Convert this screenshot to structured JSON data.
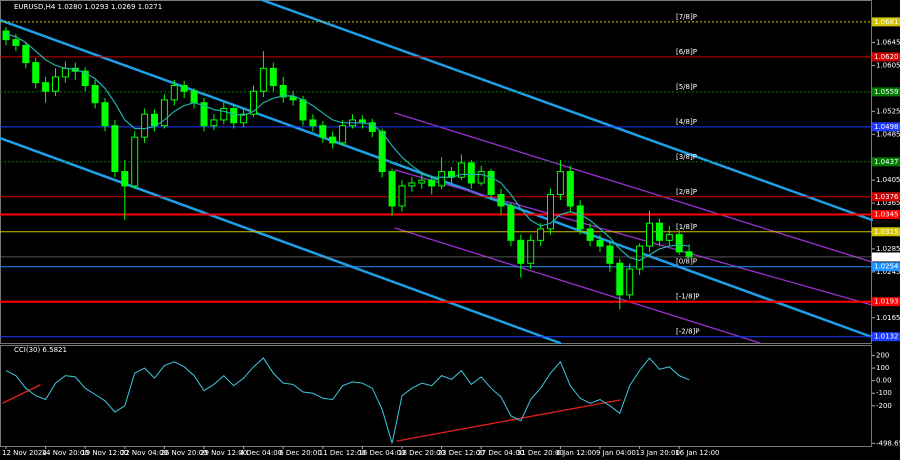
{
  "chart_data": [
    {
      "type": "candlestick",
      "title": "EURUSD,H4 1.0280 1.0293 1.0269 1.0271",
      "categories": [
        "12 Nov 2024",
        null,
        null,
        null,
        "14 Nov 20:00",
        null,
        null,
        null,
        "19 Nov 12:00",
        null,
        null,
        null,
        "22 Nov 04:00",
        null,
        null,
        null,
        "26 Nov 20:00",
        null,
        null,
        null,
        "29 Nov 12:00",
        null,
        null,
        null,
        "4 Dec 04:00",
        null,
        null,
        null,
        "6 Dec 20:00",
        null,
        null,
        null,
        "11 Dec 12:00",
        null,
        null,
        null,
        "16 Dec 04:00",
        null,
        null,
        null,
        "18 Dec 20:00",
        null,
        null,
        null,
        "23 Dec 12:00",
        null,
        null,
        null,
        "27 Dec 04:00",
        null,
        null,
        null,
        "31 Dec 20:00",
        null,
        null,
        null,
        "6 Jan 12:00",
        null,
        null,
        null,
        "9 Jan 04:00",
        null,
        null,
        null,
        "13 Jan 20:00",
        null,
        null,
        null,
        "16 Jan 12:00",
        null
      ],
      "open": [
        1.0665,
        1.065,
        1.064,
        1.061,
        1.0575,
        1.056,
        1.0585,
        1.06,
        1.0595,
        1.057,
        1.054,
        1.05,
        1.042,
        1.0395,
        1.048,
        1.052,
        1.05,
        1.0545,
        1.057,
        1.056,
        1.054,
        1.05,
        1.051,
        1.053,
        1.0505,
        1.052,
        1.056,
        1.06,
        1.057,
        1.055,
        1.0545,
        1.051,
        1.05,
        1.048,
        1.047,
        1.05,
        1.051,
        1.0505,
        1.049,
        1.042,
        1.036,
        1.0395,
        1.04,
        1.0405,
        1.0395,
        1.042,
        1.041,
        1.0435,
        1.04,
        1.042,
        1.038,
        1.036,
        1.03,
        1.026,
        1.03,
        1.032,
        1.038,
        1.042,
        1.036,
        1.032,
        1.03,
        1.029,
        1.026,
        1.0205,
        1.025,
        1.029,
        1.033,
        1.03,
        1.031,
        1.028
      ],
      "high": [
        1.0672,
        1.066,
        1.0645,
        1.0618,
        1.0585,
        1.06,
        1.0612,
        1.061,
        1.0602,
        1.058,
        1.0548,
        1.051,
        1.044,
        1.049,
        1.053,
        1.0528,
        1.0555,
        1.058,
        1.0578,
        1.0565,
        1.0548,
        1.052,
        1.054,
        1.0538,
        1.0528,
        1.057,
        1.063,
        1.061,
        1.0585,
        1.056,
        1.0552,
        1.052,
        1.0508,
        1.049,
        1.051,
        1.052,
        1.0518,
        1.0512,
        1.0495,
        1.0425,
        1.0405,
        1.041,
        1.042,
        1.0412,
        1.0445,
        1.0428,
        1.045,
        1.044,
        1.043,
        1.0425,
        1.039,
        1.0365,
        1.031,
        1.031,
        1.033,
        1.039,
        1.044,
        1.043,
        1.037,
        1.033,
        1.031,
        1.0298,
        1.0268,
        1.026,
        1.0295,
        1.0352,
        1.0338,
        1.0325,
        1.0318,
        1.0293
      ],
      "low": [
        1.064,
        1.063,
        1.06,
        1.0565,
        1.054,
        1.0552,
        1.0575,
        1.058,
        1.056,
        1.053,
        1.049,
        1.041,
        1.0335,
        1.039,
        1.047,
        1.049,
        1.0495,
        1.0535,
        1.0548,
        1.053,
        1.049,
        1.0492,
        1.0502,
        1.0495,
        1.0498,
        1.0515,
        1.055,
        1.056,
        1.054,
        1.0535,
        1.05,
        1.049,
        1.047,
        1.046,
        1.0465,
        1.0495,
        1.0495,
        1.048,
        1.041,
        1.0343,
        1.035,
        1.0385,
        1.039,
        1.038,
        1.039,
        1.04,
        1.0405,
        1.039,
        1.0395,
        1.037,
        1.0345,
        1.029,
        1.0235,
        1.025,
        1.029,
        1.031,
        1.037,
        1.035,
        1.031,
        1.029,
        1.028,
        1.0245,
        1.018,
        1.0198,
        1.024,
        1.028,
        1.029,
        1.029,
        1.0275,
        1.0269
      ],
      "close": [
        1.065,
        1.064,
        1.061,
        1.0575,
        1.056,
        1.0585,
        1.06,
        1.0595,
        1.057,
        1.054,
        1.05,
        1.042,
        1.0395,
        1.048,
        1.052,
        1.05,
        1.0545,
        1.057,
        1.056,
        1.054,
        1.05,
        1.051,
        1.053,
        1.0505,
        1.052,
        1.056,
        1.06,
        1.057,
        1.055,
        1.0545,
        1.051,
        1.05,
        1.048,
        1.047,
        1.05,
        1.051,
        1.0505,
        1.049,
        1.042,
        1.036,
        1.0395,
        1.04,
        1.0405,
        1.0395,
        1.042,
        1.041,
        1.0435,
        1.04,
        1.042,
        1.038,
        1.036,
        1.03,
        1.026,
        1.03,
        1.032,
        1.038,
        1.042,
        1.036,
        1.032,
        1.03,
        1.029,
        1.026,
        1.0205,
        1.025,
        1.029,
        1.033,
        1.03,
        1.031,
        1.028,
        1.0271
      ],
      "colors": {
        "up": "#00ff00",
        "down": "#00ff00"
      },
      "ma": {
        "color": "#20b2aa",
        "values": [
          1.066,
          1.0655,
          1.0645,
          1.063,
          1.0615,
          1.0605,
          1.06,
          1.0598,
          1.0592,
          1.0582,
          1.0565,
          1.054,
          1.051,
          1.0495,
          1.0495,
          1.0498,
          1.051,
          1.0525,
          1.0535,
          1.054,
          1.0535,
          1.0528,
          1.0525,
          1.052,
          1.0518,
          1.0525,
          1.054,
          1.0548,
          1.0552,
          1.0552,
          1.0545,
          1.0535,
          1.0522,
          1.051,
          1.0505,
          1.0505,
          1.0505,
          1.0502,
          1.0488,
          1.0465,
          1.0445,
          1.043,
          1.0418,
          1.041,
          1.041,
          1.041,
          1.0415,
          1.0415,
          1.0415,
          1.041,
          1.04,
          1.038,
          1.0355,
          1.0335,
          1.0325,
          1.033,
          1.0345,
          1.035,
          1.0345,
          1.0335,
          1.032,
          1.0305,
          1.0285,
          1.027,
          1.0265,
          1.0275,
          1.0285,
          1.029,
          1.0292,
          1.029
        ]
      },
      "ylim": [
        1.0121,
        1.0693
      ],
      "yticks": [
        1.0645,
        1.0605,
        1.0525,
        1.0485,
        1.0405,
        1.0365,
        1.0285,
        1.0245,
        1.0165
      ],
      "levels": [
        {
          "value": 1.0681,
          "label": "1.0681",
          "name": "[7/8]P",
          "color": "#d4c400",
          "style": "dotted"
        },
        {
          "value": 1.062,
          "label": "1.0620",
          "name": "[6/8]P",
          "color": "#cc0000",
          "style": "solid"
        },
        {
          "value": 1.0559,
          "label": "1.0559",
          "name": "[5/8]P",
          "color": "#007a00",
          "style": "dotted"
        },
        {
          "value": 1.0498,
          "label": "1.0498",
          "name": "[4/8]P",
          "color": "#1e3cff",
          "style": "solid"
        },
        {
          "value": 1.0437,
          "label": "1.0437",
          "name": "[3/8]P",
          "color": "#007a00",
          "style": "dotted"
        },
        {
          "value": 1.0376,
          "label": "1.0376",
          "name": "[2/8]P",
          "color": "#cc0000",
          "style": "solid"
        },
        {
          "value": 1.0315,
          "label": "1.0315",
          "name": "[1/8]P",
          "color": "#d4c400",
          "style": "solid"
        },
        {
          "value": 1.0254,
          "label": "1.0254",
          "name": "[0/8]P",
          "color": "#1e90ff",
          "style": "solid"
        },
        {
          "value": 1.0193,
          "label": "1.0193",
          "name": "[-1/8]P",
          "color": "#ff0000",
          "style": "thick"
        },
        {
          "value": 1.0132,
          "label": "1.0132",
          "name": "[-2/8]P",
          "color": "#1e3cff",
          "style": "solid"
        }
      ],
      "lines": [
        {
          "value": 1.0345,
          "label": "1.0345",
          "color": "#ff0000",
          "style": "thick"
        }
      ]
    },
    {
      "type": "line",
      "title": "CCI(30) 6.5821",
      "color": "#40c8e0",
      "values": [
        80,
        40,
        -60,
        -120,
        -150,
        -20,
        40,
        30,
        -60,
        -110,
        -160,
        -250,
        -200,
        60,
        100,
        20,
        120,
        150,
        110,
        40,
        -80,
        -30,
        40,
        -40,
        20,
        110,
        180,
        60,
        -20,
        -30,
        -90,
        -100,
        -140,
        -150,
        -40,
        -10,
        -20,
        -60,
        -230,
        -498.655,
        -120,
        -60,
        -20,
        -40,
        40,
        10,
        80,
        -30,
        30,
        -60,
        -130,
        -280,
        -320,
        -150,
        -60,
        60,
        150,
        -40,
        -140,
        -180,
        -150,
        -200,
        -260,
        -40,
        80,
        180,
        90,
        110,
        40,
        6.5821
      ],
      "ylim": [
        -520,
        260
      ],
      "yticks": [
        200,
        100,
        {
          "value": 0,
          "label": "0.00"
        },
        -100,
        -200,
        -498.655
      ]
    }
  ]
}
